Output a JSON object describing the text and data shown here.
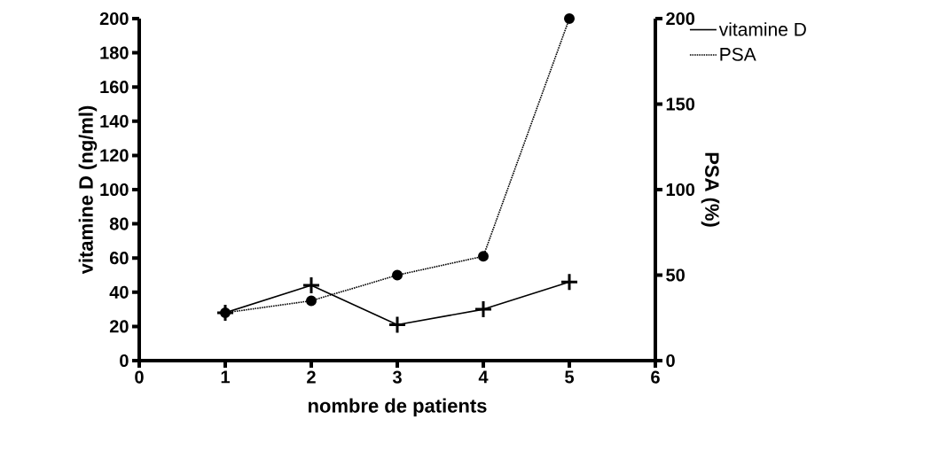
{
  "chart_data": {
    "type": "line",
    "xlabel": "nombre de patients",
    "ylabel": "vitamine D (ng/ml)",
    "y2label": "PSA (%)",
    "x": [
      1,
      2,
      3,
      4,
      5
    ],
    "series": [
      {
        "name": "vitamine D",
        "color": "#000000",
        "values": [
          28,
          44,
          21,
          30,
          46
        ],
        "marker": "cross",
        "line_style": "solid"
      },
      {
        "name": "PSA",
        "color": "#000000",
        "values": [
          28,
          35,
          50,
          61,
          200
        ],
        "marker": "circle",
        "line_style": "dotted",
        "axis": "y2"
      }
    ],
    "xlim": [
      0,
      6
    ],
    "xticks": [
      0,
      1,
      2,
      3,
      4,
      5,
      6
    ],
    "ylim": [
      0,
      200
    ],
    "yticks": [
      0,
      20,
      40,
      60,
      80,
      100,
      120,
      140,
      160,
      180,
      200
    ],
    "y2lim": [
      0,
      200
    ],
    "y2ticks": [
      0,
      50,
      100,
      150,
      200
    ],
    "grid": false,
    "legend": "top right"
  }
}
